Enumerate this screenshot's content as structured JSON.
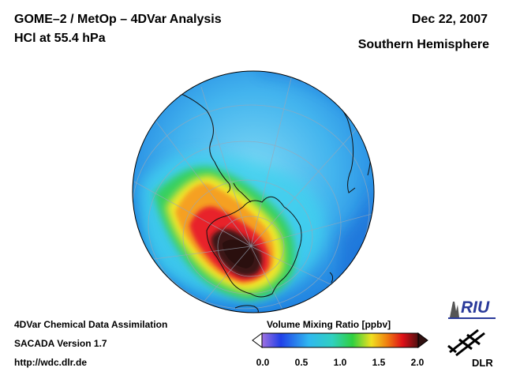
{
  "header": {
    "title_line1": "GOME–2 / MetOp – 4DVar Analysis",
    "title_line2": "HCl at 55.4 hPa",
    "date": "Dec 22, 2007",
    "region": "Southern Hemisphere"
  },
  "footer": {
    "line1": "4DVar Chemical Data Assimilation",
    "line2": "SACADA Version 1.7",
    "line3": "http://wdc.dlr.de"
  },
  "colorbar": {
    "title": "Volume Mixing Ratio [ppbv]",
    "ticks": [
      "0.0",
      "0.5",
      "1.0",
      "1.5",
      "2.0"
    ],
    "min": 0.0,
    "max": 2.0
  },
  "logos": {
    "riu_text": "RIU",
    "dlr_text": "DLR"
  },
  "colors": {
    "ocean_blue": "#2a9df4",
    "cyan": "#38c8f0",
    "green": "#2ecc40",
    "yellow": "#f5e000",
    "red": "#e8202a",
    "dark": "#3a1a18"
  }
}
